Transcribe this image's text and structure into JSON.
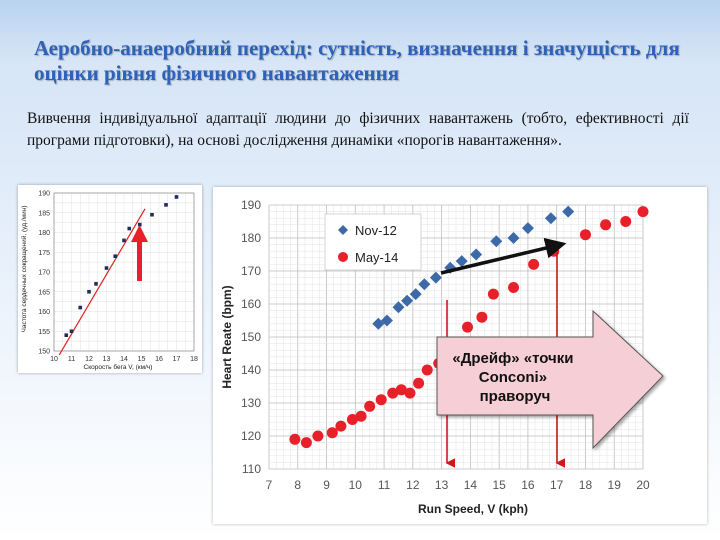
{
  "slide": {
    "title": "Аеробно-анаеробний перехід: сутність, визначення і значущість для оцінки рівня фізичного навантаження",
    "body": "Вивчення індивідуальної адаптації людини до фізичних навантажень (тобто, ефективності дії програми підготовки), на основі дослідження динаміки «порогів навантаження».",
    "callout": "«Дрейф» «точки Conconi» праворуч"
  },
  "colors": {
    "title": "#2e61b8",
    "series1": "#3c6aa8",
    "series2": "#e8202a",
    "arrow_fill": "#f5ced6"
  },
  "chart_data": [
    {
      "type": "scatter",
      "xlabel": "Скорость бега V, (км/ч)",
      "ylabel": "Частота сердечных сокращений, (уд./мин)",
      "xlim": [
        10,
        18
      ],
      "ylim": [
        150,
        190
      ],
      "xticks": [
        "10",
        "11",
        "12",
        "13",
        "14",
        "15",
        "16",
        "17",
        "18"
      ],
      "yticks": [
        "150",
        "155",
        "160",
        "165",
        "170",
        "175",
        "180",
        "185",
        "190"
      ],
      "series": [
        {
          "points": [
            [
              10.7,
              154
            ],
            [
              11.0,
              155
            ],
            [
              11.5,
              161
            ],
            [
              12.0,
              165
            ],
            [
              12.4,
              167
            ],
            [
              13.0,
              171
            ],
            [
              13.5,
              174
            ],
            [
              14.0,
              178
            ],
            [
              14.3,
              181
            ],
            [
              14.9,
              182
            ],
            [
              15.6,
              184.5
            ],
            [
              16.4,
              187
            ],
            [
              17.0,
              189
            ]
          ]
        }
      ]
    },
    {
      "type": "scatter",
      "xlabel": "Run Speed, V (kph)",
      "ylabel": "Heart Reate (bpm)",
      "xlim": [
        7,
        20
      ],
      "ylim": [
        110,
        190
      ],
      "xticks": [
        "7",
        "8",
        "9",
        "10",
        "11",
        "12",
        "13",
        "14",
        "15",
        "16",
        "17",
        "18",
        "19",
        "20"
      ],
      "yticks": [
        "110",
        "120",
        "130",
        "140",
        "150",
        "160",
        "170",
        "180",
        "190"
      ],
      "legend": "top-left",
      "series": [
        {
          "name": "Nov-12",
          "points": [
            [
              10.8,
              154
            ],
            [
              11.1,
              155
            ],
            [
              11.5,
              159
            ],
            [
              11.8,
              161
            ],
            [
              12.1,
              163
            ],
            [
              12.4,
              166
            ],
            [
              12.8,
              168
            ],
            [
              13.3,
              171
            ],
            [
              13.7,
              173
            ],
            [
              14.2,
              175
            ],
            [
              14.9,
              179
            ],
            [
              15.5,
              180
            ],
            [
              16.0,
              183
            ],
            [
              16.8,
              186
            ],
            [
              17.4,
              188
            ]
          ]
        },
        {
          "name": "May-14",
          "points": [
            [
              7.9,
              119
            ],
            [
              8.3,
              118
            ],
            [
              8.7,
              120
            ],
            [
              9.2,
              121
            ],
            [
              9.5,
              123
            ],
            [
              9.9,
              125
            ],
            [
              10.2,
              126
            ],
            [
              10.5,
              129
            ],
            [
              10.9,
              131
            ],
            [
              11.3,
              133
            ],
            [
              11.6,
              134
            ],
            [
              11.9,
              133
            ],
            [
              12.2,
              136
            ],
            [
              12.5,
              140
            ],
            [
              12.9,
              142
            ],
            [
              13.3,
              144
            ],
            [
              13.9,
              153
            ],
            [
              14.4,
              156
            ],
            [
              14.8,
              163
            ],
            [
              15.5,
              165
            ],
            [
              16.2,
              172
            ],
            [
              16.9,
              176
            ],
            [
              18.0,
              181
            ],
            [
              18.7,
              184
            ],
            [
              19.4,
              185
            ],
            [
              20.0,
              188
            ]
          ]
        }
      ]
    }
  ]
}
